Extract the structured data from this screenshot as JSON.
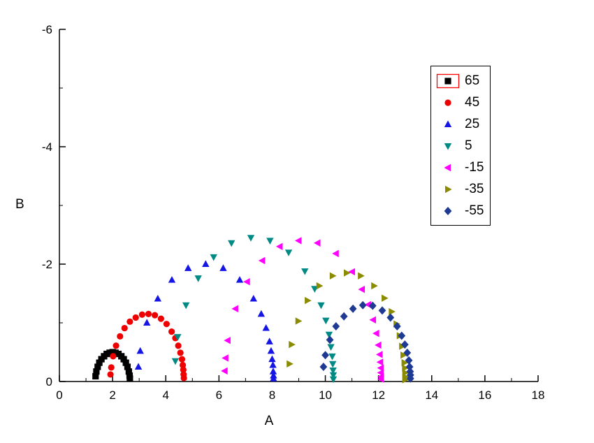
{
  "chart_data": {
    "type": "scatter",
    "title": "",
    "xlabel": "A",
    "ylabel": "B",
    "xlim": [
      0,
      18
    ],
    "ylim": [
      0,
      -6
    ],
    "x_ticks": [
      0,
      2,
      4,
      6,
      8,
      10,
      12,
      14,
      16,
      18
    ],
    "x_minor_ticks": [
      1,
      3,
      5,
      7,
      9,
      11,
      13,
      15,
      17
    ],
    "y_ticks": [
      0,
      -2,
      -4,
      -6
    ],
    "y_minor_ticks": [
      -1,
      -3,
      -5
    ],
    "grid": false,
    "legend_position": "top-right",
    "axes_color": "#000000",
    "legend_highlight_color": "#ff0000",
    "series": [
      {
        "name": "65",
        "marker": "square",
        "color": "#000000",
        "legend_highlight": true,
        "points": [
          [
            1.36,
            -0.09
          ],
          [
            1.39,
            -0.17
          ],
          [
            1.44,
            -0.25
          ],
          [
            1.5,
            -0.32
          ],
          [
            1.58,
            -0.38
          ],
          [
            1.68,
            -0.43
          ],
          [
            1.78,
            -0.47
          ],
          [
            1.89,
            -0.49
          ],
          [
            2.0,
            -0.5
          ],
          [
            2.11,
            -0.49
          ],
          [
            2.22,
            -0.47
          ],
          [
            2.33,
            -0.43
          ],
          [
            2.42,
            -0.38
          ],
          [
            2.5,
            -0.32
          ],
          [
            2.56,
            -0.25
          ],
          [
            2.61,
            -0.17
          ],
          [
            2.64,
            -0.1
          ],
          [
            2.65,
            -0.05
          ]
        ]
      },
      {
        "name": "45",
        "marker": "circle",
        "color": "#ee0000",
        "legend_highlight": false,
        "points": [
          [
            1.92,
            -0.12
          ],
          [
            1.95,
            -0.24
          ],
          [
            2.02,
            -0.43
          ],
          [
            2.13,
            -0.61
          ],
          [
            2.28,
            -0.77
          ],
          [
            2.45,
            -0.91
          ],
          [
            2.65,
            -1.02
          ],
          [
            2.87,
            -1.09
          ],
          [
            3.11,
            -1.14
          ],
          [
            3.35,
            -1.15
          ],
          [
            3.59,
            -1.13
          ],
          [
            3.82,
            -1.07
          ],
          [
            4.03,
            -0.98
          ],
          [
            4.22,
            -0.85
          ],
          [
            4.36,
            -0.74
          ],
          [
            4.47,
            -0.61
          ],
          [
            4.55,
            -0.49
          ],
          [
            4.61,
            -0.38
          ],
          [
            4.64,
            -0.28
          ],
          [
            4.66,
            -0.2
          ],
          [
            4.67,
            -0.12
          ],
          [
            4.68,
            -0.06
          ]
        ]
      },
      {
        "name": "25",
        "marker": "triangle-up",
        "color": "#1515e6",
        "legend_highlight": false,
        "points": [
          [
            2.97,
            -0.25
          ],
          [
            3.04,
            -0.52
          ],
          [
            3.29,
            -1.0
          ],
          [
            3.7,
            -1.41
          ],
          [
            4.23,
            -1.73
          ],
          [
            4.84,
            -1.93
          ],
          [
            5.5,
            -2.0
          ],
          [
            6.16,
            -1.93
          ],
          [
            6.78,
            -1.73
          ],
          [
            7.3,
            -1.41
          ],
          [
            7.59,
            -1.15
          ],
          [
            7.77,
            -0.91
          ],
          [
            7.9,
            -0.68
          ],
          [
            7.96,
            -0.52
          ],
          [
            8.0,
            -0.38
          ],
          [
            8.03,
            -0.28
          ],
          [
            8.04,
            -0.17
          ],
          [
            8.05,
            -0.1
          ],
          [
            8.05,
            -0.05
          ]
        ]
      },
      {
        "name": "5",
        "marker": "triangle-down",
        "color": "#008a85",
        "legend_highlight": false,
        "points": [
          [
            4.36,
            -0.35
          ],
          [
            4.45,
            -0.76
          ],
          [
            4.76,
            -1.3
          ],
          [
            5.22,
            -1.76
          ],
          [
            5.8,
            -2.12
          ],
          [
            6.47,
            -2.36
          ],
          [
            7.2,
            -2.45
          ],
          [
            7.92,
            -2.4
          ],
          [
            8.62,
            -2.2
          ],
          [
            9.23,
            -1.88
          ],
          [
            9.6,
            -1.58
          ],
          [
            9.84,
            -1.3
          ],
          [
            10.02,
            -1.04
          ],
          [
            10.14,
            -0.8
          ],
          [
            10.21,
            -0.59
          ],
          [
            10.26,
            -0.43
          ],
          [
            10.28,
            -0.3
          ],
          [
            10.29,
            -0.19
          ],
          [
            10.3,
            -0.11
          ],
          [
            10.3,
            -0.04
          ]
        ]
      },
      {
        "name": "-15",
        "marker": "triangle-left",
        "color": "#ff00ff",
        "legend_highlight": false,
        "points": [
          [
            6.22,
            -0.18
          ],
          [
            6.25,
            -0.4
          ],
          [
            6.33,
            -0.7
          ],
          [
            6.62,
            -1.24
          ],
          [
            7.06,
            -1.7
          ],
          [
            7.63,
            -2.06
          ],
          [
            8.29,
            -2.3
          ],
          [
            9.0,
            -2.4
          ],
          [
            9.71,
            -2.36
          ],
          [
            10.4,
            -2.18
          ],
          [
            11.01,
            -1.87
          ],
          [
            11.38,
            -1.57
          ],
          [
            11.62,
            -1.31
          ],
          [
            11.8,
            -1.05
          ],
          [
            11.92,
            -0.82
          ],
          [
            12.0,
            -0.62
          ],
          [
            12.05,
            -0.46
          ],
          [
            12.07,
            -0.33
          ],
          [
            12.09,
            -0.23
          ],
          [
            12.09,
            -0.15
          ],
          [
            12.1,
            -0.08
          ],
          [
            12.1,
            -0.04
          ]
        ]
      },
      {
        "name": "-35",
        "marker": "triangle-right",
        "color": "#8b8b00",
        "legend_highlight": false,
        "points": [
          [
            8.65,
            -0.3
          ],
          [
            8.73,
            -0.63
          ],
          [
            8.98,
            -1.03
          ],
          [
            9.33,
            -1.38
          ],
          [
            9.77,
            -1.63
          ],
          [
            10.27,
            -1.8
          ],
          [
            10.8,
            -1.85
          ],
          [
            11.33,
            -1.8
          ],
          [
            11.83,
            -1.63
          ],
          [
            12.22,
            -1.42
          ],
          [
            12.49,
            -1.19
          ],
          [
            12.67,
            -0.98
          ],
          [
            12.79,
            -0.78
          ],
          [
            12.88,
            -0.6
          ],
          [
            12.93,
            -0.45
          ],
          [
            12.97,
            -0.32
          ],
          [
            12.99,
            -0.23
          ],
          [
            13.0,
            -0.15
          ],
          [
            13.0,
            -0.08
          ],
          [
            13.0,
            -0.03
          ]
        ]
      },
      {
        "name": "-55",
        "marker": "diamond",
        "color": "#1f3a93",
        "legend_highlight": false,
        "points": [
          [
            9.93,
            -0.25
          ],
          [
            10.0,
            -0.45
          ],
          [
            10.17,
            -0.71
          ],
          [
            10.4,
            -0.94
          ],
          [
            10.7,
            -1.11
          ],
          [
            11.04,
            -1.24
          ],
          [
            11.41,
            -1.3
          ],
          [
            11.78,
            -1.29
          ],
          [
            12.14,
            -1.21
          ],
          [
            12.45,
            -1.09
          ],
          [
            12.7,
            -0.94
          ],
          [
            12.87,
            -0.78
          ],
          [
            12.99,
            -0.63
          ],
          [
            13.08,
            -0.49
          ],
          [
            13.14,
            -0.36
          ],
          [
            13.17,
            -0.25
          ],
          [
            13.19,
            -0.17
          ],
          [
            13.2,
            -0.11
          ],
          [
            13.2,
            -0.05
          ]
        ]
      }
    ]
  }
}
